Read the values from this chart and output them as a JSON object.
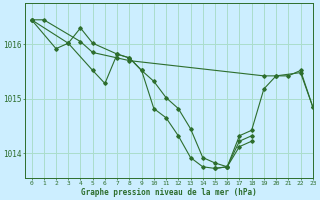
{
  "title": "Graphe pression niveau de la mer (hPa)",
  "background_color": "#cceeff",
  "grid_color": "#aaddcc",
  "line_color": "#2d6e2d",
  "xlim": [
    -0.5,
    23
  ],
  "ylim": [
    1013.55,
    1016.75
  ],
  "yticks": [
    1014,
    1015,
    1016
  ],
  "xticks": [
    0,
    1,
    2,
    3,
    4,
    5,
    6,
    7,
    8,
    9,
    10,
    11,
    12,
    13,
    14,
    15,
    16,
    17,
    18,
    19,
    20,
    21,
    22,
    23
  ],
  "series": [
    {
      "x": [
        0,
        1,
        4,
        5,
        7,
        8,
        19,
        20,
        22,
        23
      ],
      "y": [
        1016.45,
        1016.45,
        1016.05,
        1015.85,
        1015.75,
        1015.7,
        1015.42,
        1015.42,
        1015.48,
        1014.85
      ]
    },
    {
      "x": [
        0,
        2,
        3,
        4,
        5,
        7,
        8,
        9,
        10,
        11,
        12,
        13,
        14,
        15,
        16,
        17,
        18
      ],
      "y": [
        1016.45,
        1015.92,
        1016.02,
        1016.3,
        1016.02,
        1015.82,
        1015.75,
        1015.52,
        1015.32,
        1015.02,
        1014.82,
        1014.45,
        1013.92,
        1013.82,
        1013.75,
        1014.12,
        1014.22
      ]
    },
    {
      "x": [
        0,
        3,
        5,
        6,
        7,
        8,
        9,
        10,
        11,
        12,
        13,
        14,
        15,
        16,
        17,
        18
      ],
      "y": [
        1016.45,
        1016.02,
        1015.52,
        1015.28,
        1015.82,
        1015.75,
        1015.52,
        1014.82,
        1014.65,
        1014.32,
        1013.92,
        1013.75,
        1013.72,
        1013.75,
        1014.22,
        1014.32
      ]
    },
    {
      "x": [
        15,
        16,
        17,
        18,
        19,
        20,
        21,
        22,
        23
      ],
      "y": [
        1013.72,
        1013.75,
        1014.32,
        1014.42,
        1015.18,
        1015.42,
        1015.42,
        1015.52,
        1014.85
      ]
    }
  ]
}
